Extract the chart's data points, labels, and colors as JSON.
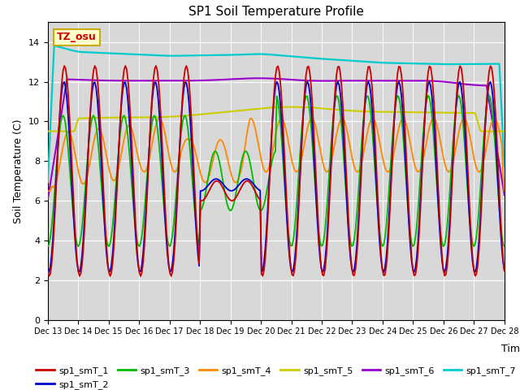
{
  "title": "SP1 Soil Temperature Profile",
  "xlabel": "Time",
  "ylabel": "Soil Temperature (C)",
  "ylim": [
    0,
    15
  ],
  "yticks": [
    0,
    2,
    4,
    6,
    8,
    10,
    12,
    14
  ],
  "colors": {
    "sp1_smT_1": "#cc0000",
    "sp1_smT_2": "#0000cc",
    "sp1_smT_3": "#00bb00",
    "sp1_smT_4": "#ff8800",
    "sp1_smT_5": "#cccc00",
    "sp1_smT_6": "#9900cc",
    "sp1_smT_7": "#00cccc"
  },
  "bg_color": "#d8d8d8",
  "annotation_text": "TZ_osu",
  "annotation_bg": "#ffffcc",
  "annotation_border": "#ccaa00",
  "figsize": [
    6.4,
    4.8
  ],
  "dpi": 100
}
